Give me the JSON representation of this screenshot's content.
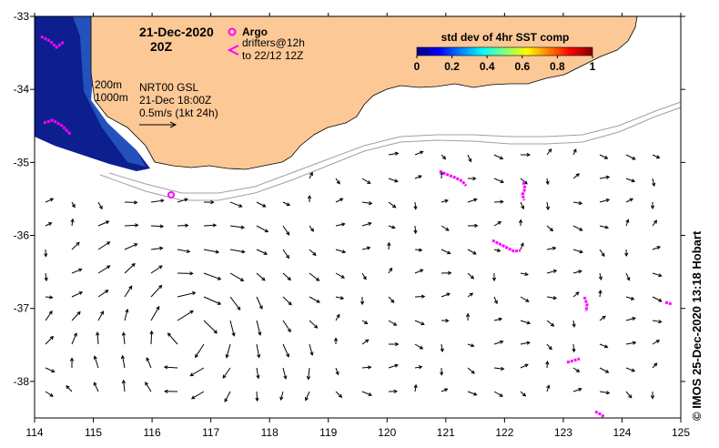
{
  "title": {
    "date": "21-Dec-2020",
    "time": "20Z"
  },
  "legend": {
    "argo_label": "Argo",
    "drifters_line1": "drifters@12h",
    "drifters_line2": "to 22/12 12Z",
    "isobath_200": "200m",
    "isobath_1000": "1000m",
    "product": "NRT00 GSL",
    "product_time": "21-Dec 18:00Z",
    "scale_label": "0.5m/s (1kt 24h)"
  },
  "colorbar": {
    "title": "std dev of 4hr SST comp",
    "ticks": [
      "0",
      "0.2",
      "0.4",
      "0.6",
      "0.8",
      "1"
    ],
    "colors": [
      "#00007f",
      "#0000ff",
      "#0080ff",
      "#00ffff",
      "#80ff80",
      "#ffff00",
      "#ff8000",
      "#ff0000",
      "#7f0000"
    ]
  },
  "axes": {
    "lon_ticks": [
      "114",
      "115",
      "116",
      "117",
      "118",
      "119",
      "120",
      "121",
      "122",
      "123",
      "124",
      "125"
    ],
    "lat_ticks": [
      "-33",
      "-34",
      "-35",
      "-36",
      "-37",
      "-38"
    ],
    "lon_range": [
      114,
      125
    ],
    "lat_range": [
      -38.5,
      -33
    ]
  },
  "credit": "© IMOS 25-Dec-2020 13:18 Hobart",
  "colors": {
    "land": "#fcc896",
    "drifter": "#ff00ff",
    "sst_deep": "#0a1a8c",
    "isobath": "#a0a0a0"
  }
}
